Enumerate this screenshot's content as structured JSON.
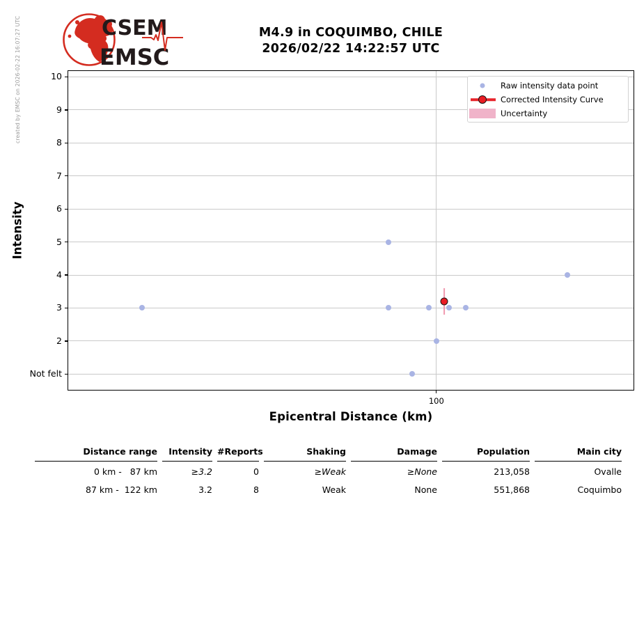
{
  "credit": "created by EMSC on 2026-02-22 16:07:27 UTC",
  "logo": {
    "line1": "CSEM",
    "line2": "EMSC",
    "red": "#d42c20",
    "dark": "#221a1b"
  },
  "header": {
    "title_line1": "M4.9 in COQUIMBO, CHILE",
    "title_line2": "2026/02/22 14:22:57 UTC"
  },
  "chart_data": {
    "type": "scatter",
    "title": "M4.9 in COQUIMBO, CHILE 2026/02/22 14:22:57 UTC",
    "xlabel": "Epicentral Distance (km)",
    "ylabel": "Intensity",
    "xscale": "log",
    "xlim": [
      24,
      215
    ],
    "ylim": [
      0.5,
      10.2
    ],
    "grid": true,
    "xticks": [
      {
        "v": 100,
        "label": "100"
      }
    ],
    "yticks": [
      {
        "v": 10,
        "label": "10"
      },
      {
        "v": 9,
        "label": "9"
      },
      {
        "v": 8,
        "label": "8"
      },
      {
        "v": 7,
        "label": "7"
      },
      {
        "v": 6,
        "label": "6"
      },
      {
        "v": 5,
        "label": "5"
      },
      {
        "v": 4,
        "label": "4"
      },
      {
        "v": 3,
        "label": "3"
      },
      {
        "v": 2,
        "label": "2"
      },
      {
        "v": 1,
        "label": "Not felt"
      }
    ],
    "series": [
      {
        "name": "Raw intensity data point",
        "type": "scatter",
        "color": "#a9b4e4",
        "marker_size": 8,
        "points": [
          {
            "distance_km": 32,
            "intensity": 3
          },
          {
            "distance_km": 83,
            "intensity": 5
          },
          {
            "distance_km": 83,
            "intensity": 3
          },
          {
            "distance_km": 91,
            "intensity": 1
          },
          {
            "distance_km": 97,
            "intensity": 3
          },
          {
            "distance_km": 100,
            "intensity": 2
          },
          {
            "distance_km": 105,
            "intensity": 3
          },
          {
            "distance_km": 112,
            "intensity": 3
          },
          {
            "distance_km": 166,
            "intensity": 4
          }
        ]
      },
      {
        "name": "Corrected Intensity Curve",
        "type": "line_marker",
        "color": "#e8242b",
        "marker_fill": "#ea1c24",
        "marker_edge": "#141414",
        "marker_size": 11,
        "err_color": "#f098ae",
        "points": [
          {
            "distance_km": 103,
            "intensity": 3.2,
            "yerr": 0.4
          }
        ]
      }
    ],
    "legend": {
      "position": "upper right",
      "entries": [
        {
          "label": "Raw intensity data point",
          "marker": "dot",
          "color": "#a9b4e4"
        },
        {
          "label": "Corrected Intensity Curve",
          "marker": "line-circle",
          "color": "#e8242b"
        },
        {
          "label": "Uncertainty",
          "marker": "patch",
          "color": "#f0b3c9"
        }
      ]
    }
  },
  "table": {
    "headers": [
      "Distance range",
      "Intensity",
      "#Reports",
      "Shaking",
      "Damage",
      "Population",
      "Main city"
    ],
    "rows": [
      {
        "cells": [
          "0 km -   87 km",
          "≥3.2",
          "0",
          "≥Weak",
          "≥None",
          "213,058",
          "Ovalle"
        ],
        "italic_cols": [
          1,
          3,
          4
        ]
      },
      {
        "cells": [
          "87 km -  122 km",
          "3.2",
          "8",
          "Weak",
          "None",
          "551,868",
          "Coquimbo"
        ],
        "italic_cols": []
      }
    ]
  },
  "colors": {
    "grid": "#c9c9c9",
    "frame": "#000000",
    "raw_point": "#a9b4e4",
    "corrected_red": "#e8242b",
    "uncertainty_pink": "#f0b3c9",
    "errorbar_pink": "#f098ae",
    "credit_gray": "#9a9a9a"
  }
}
